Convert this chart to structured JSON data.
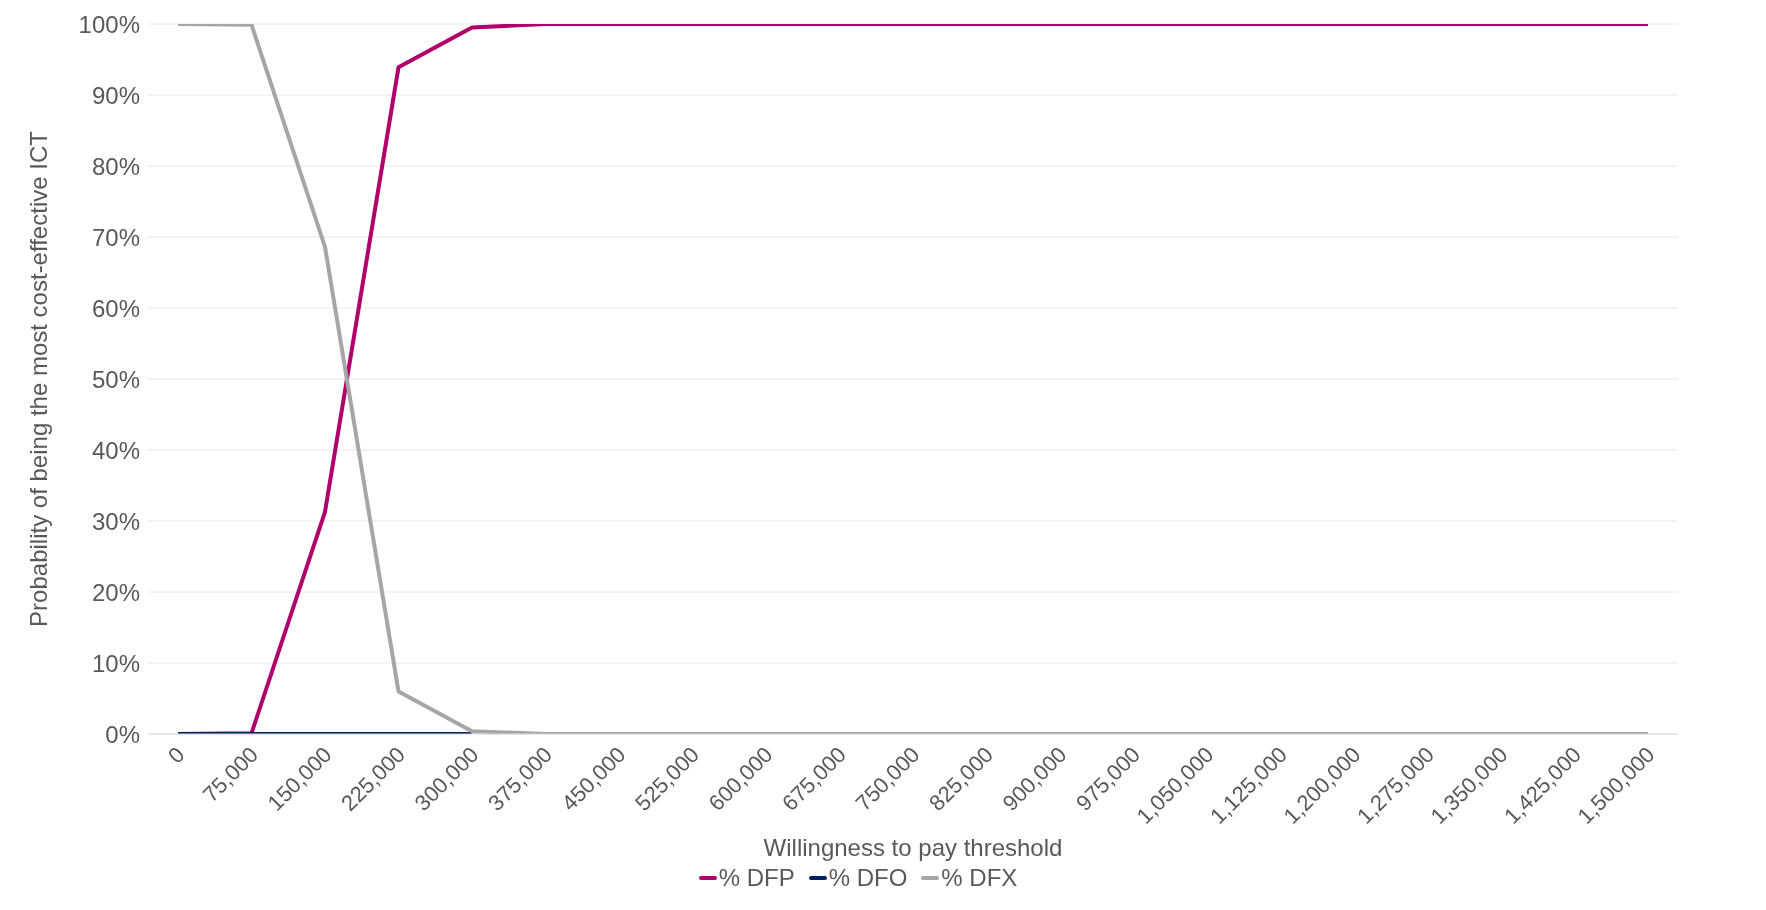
{
  "chart_data": {
    "type": "line",
    "xlabel": "Willingness to pay threshold",
    "ylabel": "Probability of being the most cost-effective ICT",
    "categories": [
      "0",
      "75,000",
      "150,000",
      "225,000",
      "300,000",
      "375,000",
      "450,000",
      "525,000",
      "600,000",
      "675,000",
      "750,000",
      "825,000",
      "900,000",
      "975,000",
      "1,050,000",
      "1,125,000",
      "1,200,000",
      "1,275,000",
      "1,350,000",
      "1,425,000",
      "1,500,000"
    ],
    "series": [
      {
        "name": "% DFP",
        "color": "#b0006a",
        "values": [
          0,
          0.1,
          31.3,
          93.9,
          99.5,
          100,
          100,
          100,
          100,
          100,
          100,
          100,
          100,
          100,
          100,
          100,
          100,
          100,
          100,
          100,
          100
        ]
      },
      {
        "name": "% DFO",
        "color": "#002060",
        "values": [
          0,
          0,
          0,
          0,
          0,
          null,
          null,
          null,
          null,
          null,
          null,
          null,
          null,
          null,
          null,
          null,
          null,
          null,
          null,
          null,
          null
        ]
      },
      {
        "name": "% DFX",
        "color": "#a6a6a6",
        "values": [
          100,
          99.9,
          68.6,
          6,
          0.4,
          0,
          0,
          0,
          0,
          0,
          0,
          0,
          0,
          0,
          0,
          0,
          0,
          0,
          0,
          0,
          0
        ]
      }
    ],
    "ylim": [
      0,
      100
    ],
    "yticks": [
      {
        "value": 0,
        "label": "0%"
      },
      {
        "value": 10,
        "label": "10%"
      },
      {
        "value": 20,
        "label": "20%"
      },
      {
        "value": 30,
        "label": "30%"
      },
      {
        "value": 40,
        "label": "40%"
      },
      {
        "value": 50,
        "label": "50%"
      },
      {
        "value": 60,
        "label": "60%"
      },
      {
        "value": 70,
        "label": "70%"
      },
      {
        "value": 80,
        "label": "80%"
      },
      {
        "value": 90,
        "label": "90%"
      },
      {
        "value": 100,
        "label": "100%"
      }
    ],
    "grid": "y",
    "legend": "bottom",
    "marker": "none",
    "line_style": "solid"
  }
}
